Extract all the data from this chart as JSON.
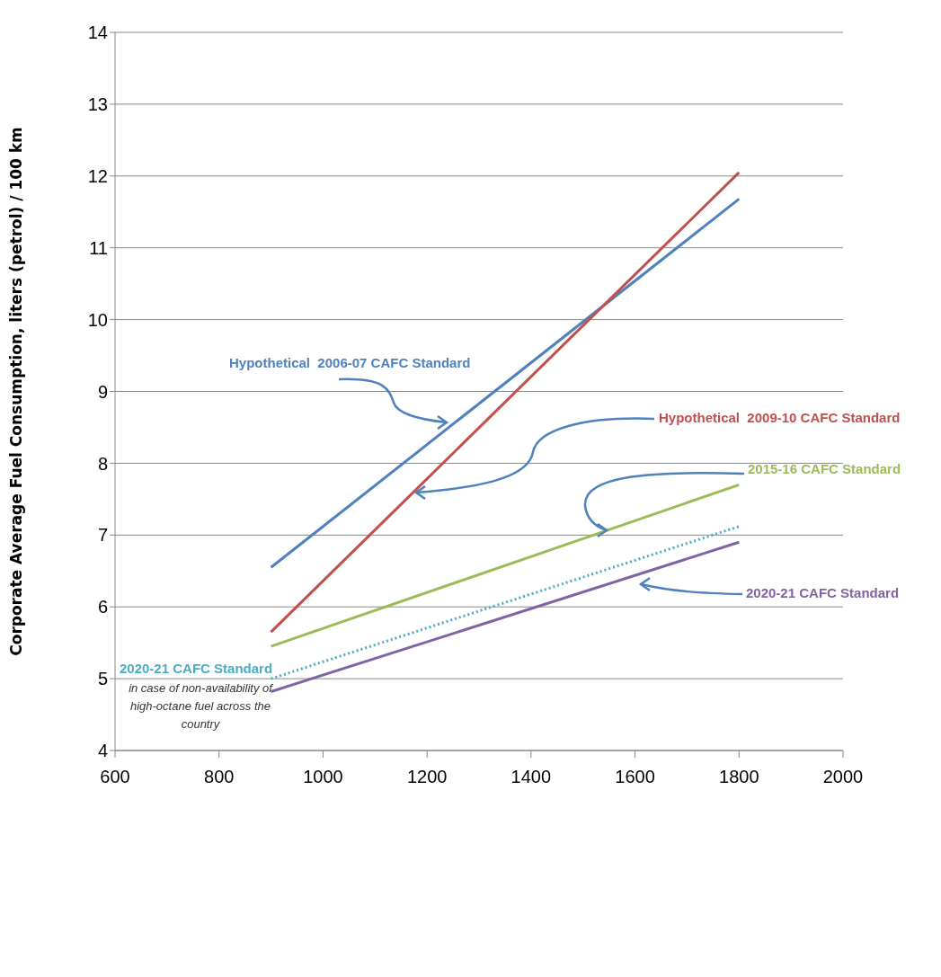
{
  "chart_data": {
    "type": "line",
    "ylabel": "Corporate Average Fuel Consumption,  liters (petrol) / 100 km",
    "x": [
      900,
      1800
    ],
    "series": [
      {
        "name": "Hypothetical  2006-07 CAFC Standard",
        "color": "#4f81bd",
        "values": [
          6.55,
          11.68
        ]
      },
      {
        "name": "Hypothetical  2009-10 CAFC Standard",
        "color": "#c0504d",
        "values": [
          5.65,
          12.05
        ]
      },
      {
        "name": "2015-16 CAFC Standard",
        "color": "#9bbb59",
        "values": [
          5.45,
          7.7
        ]
      },
      {
        "name": "2020-21 CAFC Standard",
        "color": "#8064a2",
        "values": [
          4.82,
          6.9
        ]
      },
      {
        "name": "2020-21 CAFC Standard",
        "color": "#4bacc6",
        "values": [
          5.0,
          7.12
        ],
        "line_style": "dotted"
      }
    ],
    "annotations": [
      "in case of non-availability of high-octane fuel across the country"
    ],
    "xlim": [
      600,
      2000
    ],
    "xticks": [
      600,
      800,
      1000,
      1200,
      1400,
      1600,
      1800,
      2000
    ],
    "ylim": [
      4,
      14
    ],
    "yticks": [
      4,
      5,
      6,
      7,
      8,
      9,
      10,
      11,
      12,
      13,
      14
    ],
    "grid": "y",
    "marker": "none",
    "legend": false
  }
}
